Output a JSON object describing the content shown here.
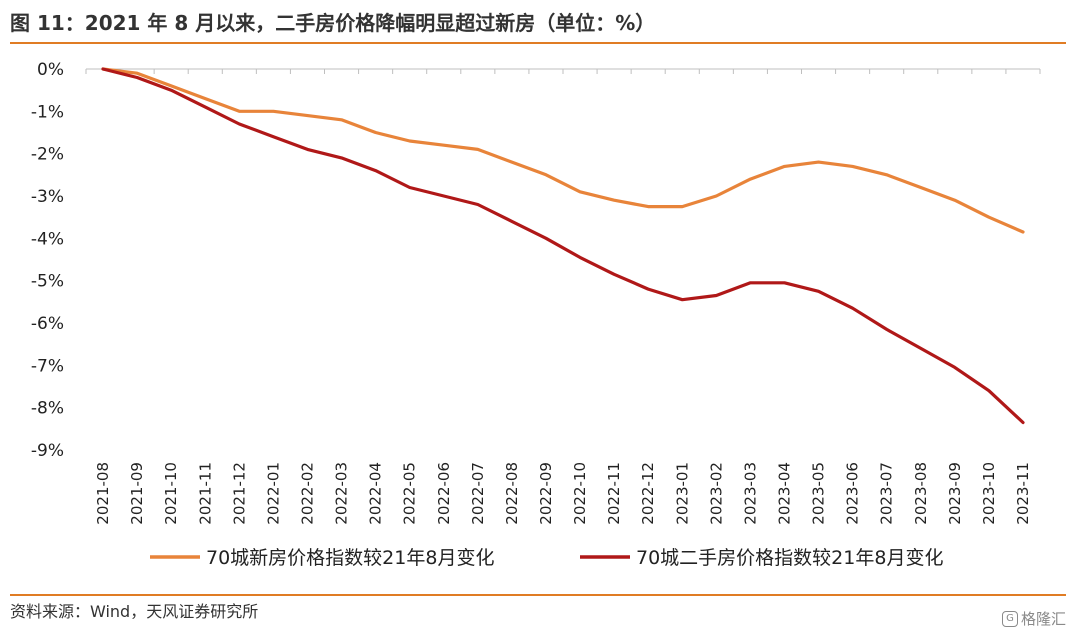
{
  "title": "图 11：2021 年 8 月以来，二手房价格降幅明显超过新房（单位：%）",
  "source": "资料来源：Wind，天风证券研究所",
  "watermark": "格隆汇",
  "colors": {
    "accent": "#e07c24",
    "series_new": "#e8843a",
    "series_second": "#b01818"
  },
  "chart_data": {
    "type": "line",
    "title": "",
    "xlabel": "",
    "ylabel": "",
    "ylim": [
      -9,
      0
    ],
    "yticks": [
      0,
      -1,
      -2,
      -3,
      -4,
      -5,
      -6,
      -7,
      -8,
      -9
    ],
    "ytick_labels": [
      "0%",
      "-1%",
      "-2%",
      "-3%",
      "-4%",
      "-5%",
      "-6%",
      "-7%",
      "-8%",
      "-9%"
    ],
    "x": [
      "2021-08",
      "2021-09",
      "2021-10",
      "2021-11",
      "2021-12",
      "2022-01",
      "2022-02",
      "2022-03",
      "2022-04",
      "2022-05",
      "2022-06",
      "2022-07",
      "2022-08",
      "2022-09",
      "2022-10",
      "2022-11",
      "2022-12",
      "2023-01",
      "2023-02",
      "2023-03",
      "2023-04",
      "2023-05",
      "2023-06",
      "2023-07",
      "2023-08",
      "2023-09",
      "2023-10",
      "2023-11"
    ],
    "grid": false,
    "legend_position": "bottom",
    "series": [
      {
        "name": "70城新房价格指数较21年8月变化",
        "color": "#e8843a",
        "values": [
          0,
          -0.1,
          -0.4,
          -0.7,
          -1.0,
          -1.0,
          -1.1,
          -1.2,
          -1.5,
          -1.7,
          -1.8,
          -1.9,
          -2.2,
          -2.5,
          -2.9,
          -3.1,
          -3.25,
          -3.25,
          -3.0,
          -2.6,
          -2.3,
          -2.2,
          -2.3,
          -2.5,
          -2.8,
          -3.1,
          -3.5,
          -3.85
        ]
      },
      {
        "name": "70城二手房价格指数较21年8月变化",
        "color": "#b01818",
        "values": [
          0,
          -0.2,
          -0.5,
          -0.9,
          -1.3,
          -1.6,
          -1.9,
          -2.1,
          -2.4,
          -2.8,
          -3.0,
          -3.2,
          -3.6,
          -4.0,
          -4.45,
          -4.85,
          -5.2,
          -5.45,
          -5.35,
          -5.05,
          -5.05,
          -5.25,
          -5.65,
          -6.15,
          -6.6,
          -7.05,
          -7.6,
          -8.35
        ]
      }
    ]
  }
}
